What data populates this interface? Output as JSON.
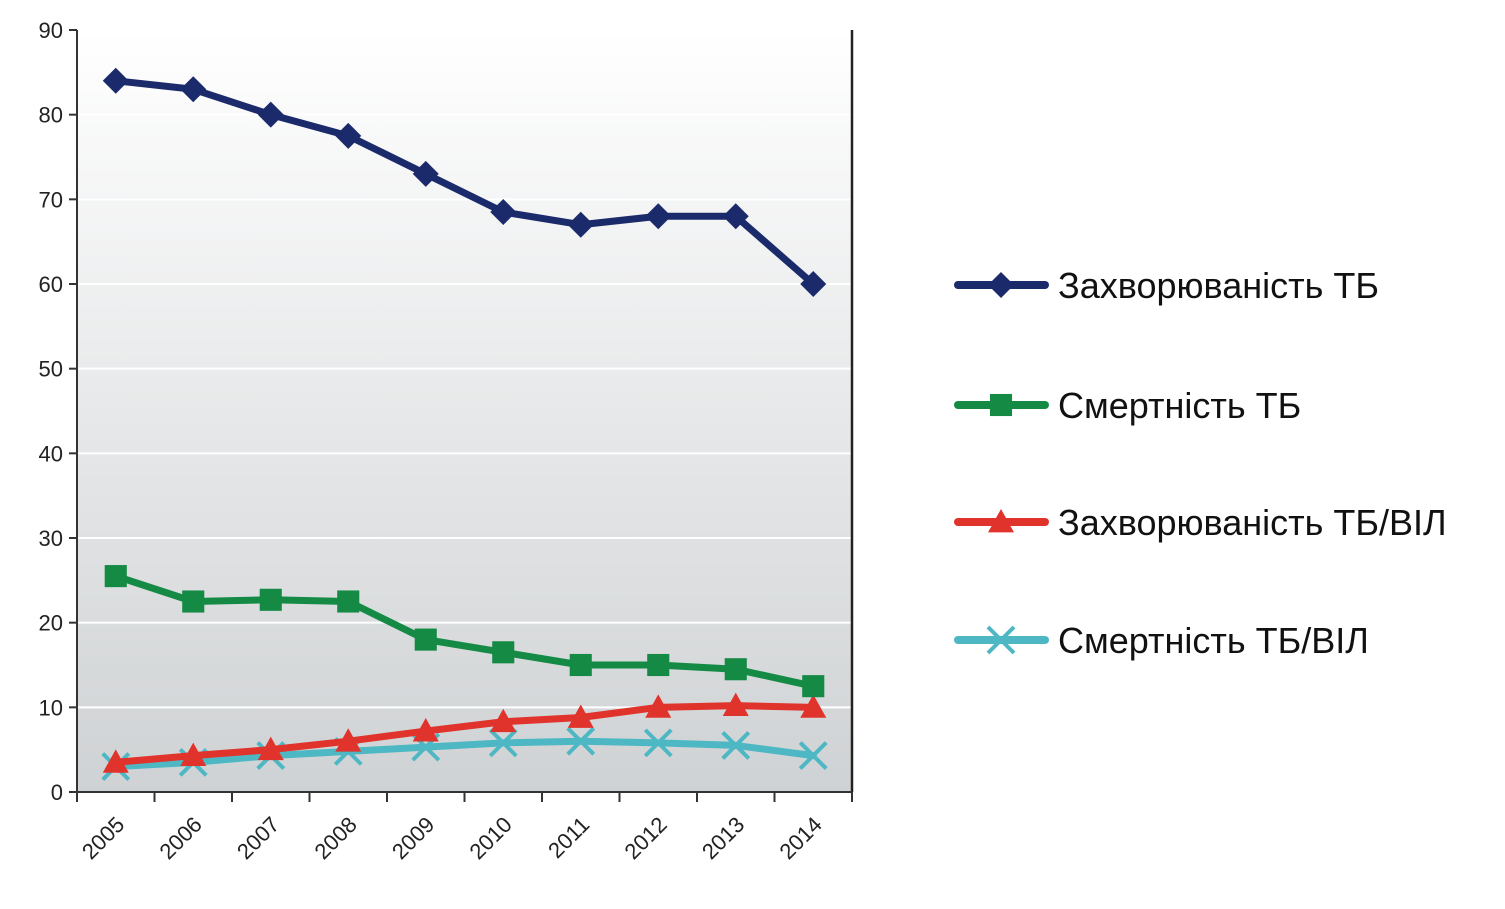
{
  "chart_data": {
    "type": "line",
    "x": [
      "2005",
      "2006",
      "2007",
      "2008",
      "2009",
      "2010",
      "2011",
      "2012",
      "2013",
      "2014"
    ],
    "ylim": [
      0,
      90
    ],
    "yticks": [
      "0",
      "10",
      "20",
      "30",
      "40",
      "50",
      "60",
      "70",
      "80",
      "90"
    ],
    "grid": true,
    "legend_position": "right",
    "title": "",
    "xlabel": "",
    "ylabel": "",
    "series": [
      {
        "name": "Захворюваність ТБ",
        "color": "#1b2a6b",
        "marker": "diamond",
        "values": [
          84,
          83,
          80,
          77.5,
          73,
          68.5,
          67,
          68,
          68,
          60
        ]
      },
      {
        "name": "Смертність ТБ",
        "color": "#158a45",
        "marker": "square",
        "values": [
          25.5,
          22.5,
          22.7,
          22.5,
          18,
          16.5,
          15,
          15,
          14.5,
          12.5
        ]
      },
      {
        "name": "Захворюваність ТБ/ВІЛ",
        "color": "#e0332b",
        "marker": "triangle",
        "values": [
          3.5,
          4.3,
          5,
          6,
          7.2,
          8.3,
          8.8,
          10,
          10.2,
          10
        ]
      },
      {
        "name": "Смертність ТБ/ВІЛ",
        "color": "#4db8c4",
        "marker": "x",
        "values": [
          3,
          3.5,
          4.3,
          4.8,
          5.3,
          5.8,
          6,
          5.8,
          5.5,
          4.3
        ]
      }
    ]
  }
}
